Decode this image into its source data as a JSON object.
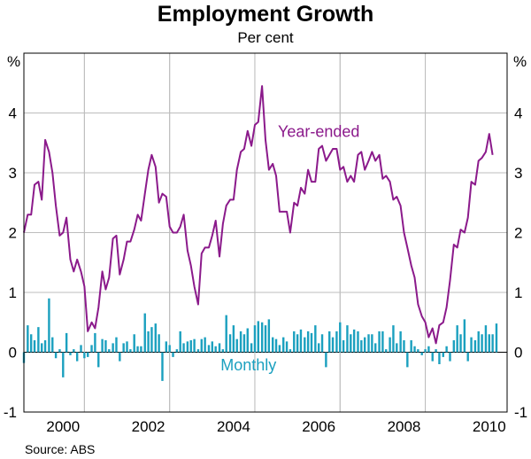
{
  "chart_data": {
    "type": "line",
    "title": "Employment Growth",
    "subtitle": "Per cent",
    "unit_left": "%",
    "unit_right": "%",
    "source": "Source: ABS",
    "ylim": [
      -1,
      5
    ],
    "yticks": [
      -1,
      0,
      1,
      2,
      3,
      4
    ],
    "xlim": [
      1999.58,
      2010.92
    ],
    "xticks": [
      {
        "label": "2000",
        "value": 2000.0
      },
      {
        "label": "2002",
        "value": 2002.0
      },
      {
        "label": "2004",
        "value": 2004.0
      },
      {
        "label": "2006",
        "value": 2006.0
      },
      {
        "label": "2008",
        "value": 2008.0
      },
      {
        "label": "2010",
        "value": 2010.0
      }
    ],
    "grid": true,
    "colors": {
      "year_ended": "#8b1a8b",
      "monthly": "#1ba0bf"
    },
    "series": [
      {
        "name": "Year-ended",
        "kind": "line",
        "label_pos": [
          2006.5,
          3.6
        ],
        "points": [
          [
            1999.58,
            2.0
          ],
          [
            1999.67,
            2.3
          ],
          [
            1999.75,
            2.3
          ],
          [
            1999.83,
            2.8
          ],
          [
            1999.92,
            2.85
          ],
          [
            2000.0,
            2.55
          ],
          [
            2000.08,
            3.55
          ],
          [
            2000.17,
            3.35
          ],
          [
            2000.25,
            3.0
          ],
          [
            2000.33,
            2.45
          ],
          [
            2000.42,
            1.95
          ],
          [
            2000.5,
            2.0
          ],
          [
            2000.58,
            2.25
          ],
          [
            2000.67,
            1.55
          ],
          [
            2000.75,
            1.35
          ],
          [
            2000.83,
            1.55
          ],
          [
            2000.92,
            1.35
          ],
          [
            2001.0,
            1.1
          ],
          [
            2001.08,
            0.35
          ],
          [
            2001.17,
            0.5
          ],
          [
            2001.25,
            0.4
          ],
          [
            2001.33,
            0.75
          ],
          [
            2001.42,
            1.35
          ],
          [
            2001.5,
            1.05
          ],
          [
            2001.58,
            1.25
          ],
          [
            2001.67,
            1.9
          ],
          [
            2001.75,
            1.95
          ],
          [
            2001.83,
            1.3
          ],
          [
            2001.92,
            1.55
          ],
          [
            2002.0,
            1.85
          ],
          [
            2002.08,
            1.85
          ],
          [
            2002.17,
            2.05
          ],
          [
            2002.25,
            2.3
          ],
          [
            2002.33,
            2.2
          ],
          [
            2002.42,
            2.65
          ],
          [
            2002.5,
            3.05
          ],
          [
            2002.58,
            3.3
          ],
          [
            2002.67,
            3.1
          ],
          [
            2002.75,
            2.5
          ],
          [
            2002.83,
            2.65
          ],
          [
            2002.92,
            2.6
          ],
          [
            2003.0,
            2.1
          ],
          [
            2003.08,
            2.0
          ],
          [
            2003.17,
            2.0
          ],
          [
            2003.25,
            2.1
          ],
          [
            2003.33,
            2.3
          ],
          [
            2003.42,
            1.7
          ],
          [
            2003.5,
            1.45
          ],
          [
            2003.58,
            1.1
          ],
          [
            2003.67,
            0.8
          ],
          [
            2003.75,
            1.65
          ],
          [
            2003.83,
            1.75
          ],
          [
            2003.92,
            1.75
          ],
          [
            2004.0,
            1.95
          ],
          [
            2004.08,
            2.2
          ],
          [
            2004.17,
            1.6
          ],
          [
            2004.25,
            2.15
          ],
          [
            2004.33,
            2.45
          ],
          [
            2004.42,
            2.55
          ],
          [
            2004.5,
            2.55
          ],
          [
            2004.58,
            3.05
          ],
          [
            2004.67,
            3.35
          ],
          [
            2004.75,
            3.4
          ],
          [
            2004.83,
            3.7
          ],
          [
            2004.92,
            3.45
          ],
          [
            2005.0,
            3.8
          ],
          [
            2005.08,
            3.85
          ],
          [
            2005.17,
            4.45
          ],
          [
            2005.25,
            3.55
          ],
          [
            2005.33,
            3.05
          ],
          [
            2005.42,
            3.15
          ],
          [
            2005.5,
            2.95
          ],
          [
            2005.58,
            2.35
          ],
          [
            2005.67,
            2.35
          ],
          [
            2005.75,
            2.35
          ],
          [
            2005.83,
            2.0
          ],
          [
            2005.92,
            2.5
          ],
          [
            2006.0,
            2.45
          ],
          [
            2006.08,
            2.75
          ],
          [
            2006.17,
            2.65
          ],
          [
            2006.25,
            3.05
          ],
          [
            2006.33,
            2.85
          ],
          [
            2006.42,
            2.85
          ],
          [
            2006.5,
            3.4
          ],
          [
            2006.58,
            3.45
          ],
          [
            2006.67,
            3.2
          ],
          [
            2006.75,
            3.3
          ],
          [
            2006.83,
            3.4
          ],
          [
            2006.92,
            3.4
          ],
          [
            2007.0,
            3.05
          ],
          [
            2007.08,
            3.1
          ],
          [
            2007.17,
            2.85
          ],
          [
            2007.25,
            2.95
          ],
          [
            2007.33,
            2.85
          ],
          [
            2007.42,
            3.3
          ],
          [
            2007.5,
            3.35
          ],
          [
            2007.58,
            3.05
          ],
          [
            2007.67,
            3.2
          ],
          [
            2007.75,
            3.35
          ],
          [
            2007.83,
            3.2
          ],
          [
            2007.92,
            3.3
          ],
          [
            2008.0,
            2.9
          ],
          [
            2008.08,
            2.95
          ],
          [
            2008.17,
            2.85
          ],
          [
            2008.25,
            2.55
          ],
          [
            2008.33,
            2.6
          ],
          [
            2008.42,
            2.45
          ],
          [
            2008.5,
            2.0
          ],
          [
            2008.58,
            1.75
          ],
          [
            2008.67,
            1.45
          ],
          [
            2008.75,
            1.25
          ],
          [
            2008.83,
            0.8
          ],
          [
            2008.92,
            0.6
          ],
          [
            2009.0,
            0.5
          ],
          [
            2009.08,
            0.25
          ],
          [
            2009.17,
            0.4
          ],
          [
            2009.25,
            0.15
          ],
          [
            2009.33,
            0.45
          ],
          [
            2009.42,
            0.5
          ],
          [
            2009.5,
            0.75
          ],
          [
            2009.58,
            1.2
          ],
          [
            2009.67,
            1.8
          ],
          [
            2009.75,
            1.75
          ],
          [
            2009.83,
            2.05
          ],
          [
            2009.92,
            2.0
          ],
          [
            2010.0,
            2.25
          ],
          [
            2010.08,
            2.85
          ],
          [
            2010.17,
            2.8
          ],
          [
            2010.25,
            3.2
          ],
          [
            2010.33,
            3.25
          ],
          [
            2010.42,
            3.35
          ],
          [
            2010.5,
            3.65
          ],
          [
            2010.58,
            3.3
          ]
        ]
      },
      {
        "name": "Monthly",
        "kind": "bar",
        "label_pos": [
          2004.85,
          -0.3
        ],
        "points": [
          [
            1999.58,
            -0.18
          ],
          [
            1999.67,
            0.45
          ],
          [
            1999.75,
            0.3
          ],
          [
            1999.83,
            0.2
          ],
          [
            1999.92,
            0.42
          ],
          [
            2000.0,
            0.15
          ],
          [
            2000.08,
            0.2
          ],
          [
            2000.17,
            0.9
          ],
          [
            2000.25,
            0.25
          ],
          [
            2000.33,
            -0.1
          ],
          [
            2000.42,
            0.05
          ],
          [
            2000.5,
            -0.42
          ],
          [
            2000.58,
            0.32
          ],
          [
            2000.67,
            -0.05
          ],
          [
            2000.75,
            0.05
          ],
          [
            2000.83,
            -0.15
          ],
          [
            2000.92,
            0.12
          ],
          [
            2001.0,
            -0.1
          ],
          [
            2001.08,
            -0.08
          ],
          [
            2001.17,
            0.12
          ],
          [
            2001.25,
            0.32
          ],
          [
            2001.33,
            -0.25
          ],
          [
            2001.42,
            0.22
          ],
          [
            2001.5,
            0.2
          ],
          [
            2001.58,
            0.05
          ],
          [
            2001.67,
            0.15
          ],
          [
            2001.75,
            0.25
          ],
          [
            2001.83,
            -0.15
          ],
          [
            2001.92,
            0.15
          ],
          [
            2002.0,
            0.18
          ],
          [
            2002.08,
            0.05
          ],
          [
            2002.17,
            0.3
          ],
          [
            2002.25,
            0.1
          ],
          [
            2002.33,
            0.1
          ],
          [
            2002.42,
            0.65
          ],
          [
            2002.5,
            0.35
          ],
          [
            2002.58,
            0.42
          ],
          [
            2002.67,
            0.48
          ],
          [
            2002.75,
            0.3
          ],
          [
            2002.83,
            -0.48
          ],
          [
            2002.92,
            0.18
          ],
          [
            2003.0,
            0.12
          ],
          [
            2003.08,
            -0.08
          ],
          [
            2003.17,
            0.05
          ],
          [
            2003.25,
            0.35
          ],
          [
            2003.33,
            0.15
          ],
          [
            2003.42,
            0.18
          ],
          [
            2003.5,
            0.2
          ],
          [
            2003.58,
            0.22
          ],
          [
            2003.67,
            0.05
          ],
          [
            2003.75,
            0.22
          ],
          [
            2003.83,
            0.25
          ],
          [
            2003.92,
            0.12
          ],
          [
            2004.0,
            0.18
          ],
          [
            2004.08,
            0.1
          ],
          [
            2004.17,
            0.15
          ],
          [
            2004.25,
            0.05
          ],
          [
            2004.33,
            0.62
          ],
          [
            2004.42,
            0.3
          ],
          [
            2004.5,
            0.45
          ],
          [
            2004.58,
            0.22
          ],
          [
            2004.67,
            0.35
          ],
          [
            2004.75,
            0.3
          ],
          [
            2004.83,
            0.4
          ],
          [
            2004.92,
            0.15
          ],
          [
            2005.0,
            0.45
          ],
          [
            2005.08,
            0.52
          ],
          [
            2005.17,
            0.5
          ],
          [
            2005.25,
            0.45
          ],
          [
            2005.33,
            0.55
          ],
          [
            2005.42,
            0.25
          ],
          [
            2005.5,
            0.22
          ],
          [
            2005.58,
            0.12
          ],
          [
            2005.67,
            0.25
          ],
          [
            2005.75,
            0.18
          ],
          [
            2005.83,
            0.05
          ],
          [
            2005.92,
            0.35
          ],
          [
            2006.0,
            0.3
          ],
          [
            2006.08,
            0.38
          ],
          [
            2006.17,
            0.25
          ],
          [
            2006.25,
            0.35
          ],
          [
            2006.33,
            0.32
          ],
          [
            2006.42,
            0.45
          ],
          [
            2006.5,
            0.15
          ],
          [
            2006.58,
            0.3
          ],
          [
            2006.67,
            -0.25
          ],
          [
            2006.75,
            0.35
          ],
          [
            2006.83,
            0.25
          ],
          [
            2006.92,
            0.35
          ],
          [
            2007.0,
            0.5
          ],
          [
            2007.08,
            0.2
          ],
          [
            2007.17,
            0.45
          ],
          [
            2007.25,
            0.3
          ],
          [
            2007.33,
            0.38
          ],
          [
            2007.42,
            0.35
          ],
          [
            2007.5,
            0.2
          ],
          [
            2007.58,
            0.25
          ],
          [
            2007.67,
            0.3
          ],
          [
            2007.75,
            0.3
          ],
          [
            2007.83,
            0.15
          ],
          [
            2007.92,
            0.35
          ],
          [
            2008.0,
            0.35
          ],
          [
            2008.08,
            0.05
          ],
          [
            2008.17,
            0.25
          ],
          [
            2008.25,
            0.45
          ],
          [
            2008.33,
            0.15
          ],
          [
            2008.42,
            0.35
          ],
          [
            2008.5,
            0.2
          ],
          [
            2008.58,
            -0.25
          ],
          [
            2008.67,
            0.2
          ],
          [
            2008.75,
            0.1
          ],
          [
            2008.83,
            0.05
          ],
          [
            2008.92,
            -0.05
          ],
          [
            2009.0,
            0.05
          ],
          [
            2009.08,
            0.1
          ],
          [
            2009.17,
            -0.15
          ],
          [
            2009.25,
            0.05
          ],
          [
            2009.33,
            -0.2
          ],
          [
            2009.42,
            -0.08
          ],
          [
            2009.5,
            0.1
          ],
          [
            2009.58,
            -0.15
          ],
          [
            2009.67,
            0.2
          ],
          [
            2009.75,
            0.45
          ],
          [
            2009.83,
            0.3
          ],
          [
            2009.92,
            0.55
          ],
          [
            2010.0,
            -0.15
          ],
          [
            2010.08,
            0.25
          ],
          [
            2010.17,
            0.2
          ],
          [
            2010.25,
            0.35
          ],
          [
            2010.33,
            0.3
          ],
          [
            2010.42,
            0.45
          ],
          [
            2010.5,
            0.3
          ],
          [
            2010.58,
            0.3
          ],
          [
            2010.67,
            0.48
          ]
        ]
      }
    ]
  }
}
